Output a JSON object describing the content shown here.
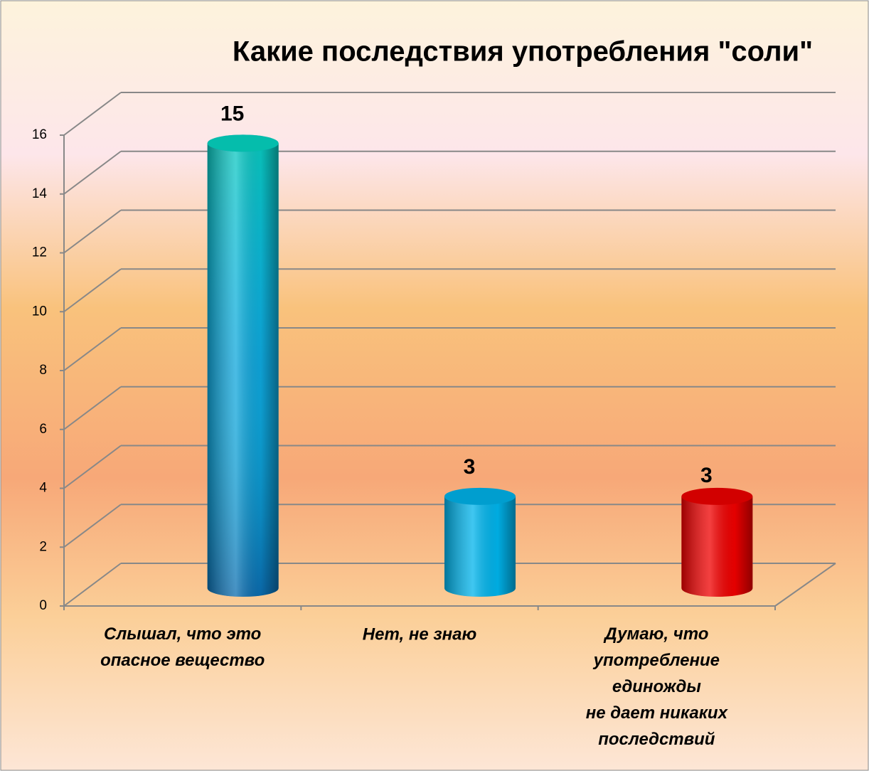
{
  "chart_data": {
    "type": "bar3d",
    "title": "Какие последствия употребления \"соли\"",
    "categories": [
      "Слышал, что это\nопасное вещество",
      "Нет, не знаю",
      "Думаю, что\nупотребление\nединожды\nне дает никаких\nпоследствий"
    ],
    "values": [
      15,
      3,
      3
    ],
    "colors": [
      "#109cd8",
      "#00b4ec",
      "#f00000"
    ],
    "ylim": [
      0,
      16
    ],
    "yticks": [
      0,
      2,
      4,
      6,
      8,
      10,
      12,
      14,
      16
    ],
    "grid": true
  }
}
